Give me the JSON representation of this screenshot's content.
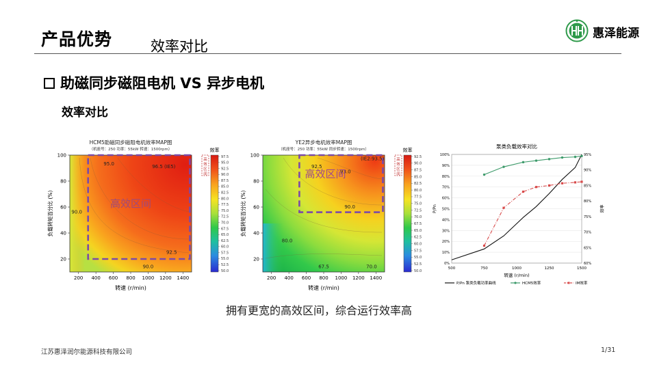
{
  "header": {
    "title": "产品优势",
    "subtitle": "效率对比",
    "brand_name": "惠泽能源",
    "logo_icon": "hz-logo-icon",
    "logo_color": "#2e9a4a"
  },
  "section": {
    "title": "助磁同步磁阻电机 VS 异步电机",
    "sub_heading": "效率对比"
  },
  "caption": "拥有更宽的高效区间，综合运行效率高",
  "footer": {
    "company": "江苏惠泽润尔能源科技有限公司",
    "page": "1/31"
  },
  "chart_data": [
    {
      "type": "heatmap",
      "title": "HCM5助磁同步磁阻电机效率MAP图",
      "subtitle": "（机座号：250  功率：55kW  转速：1500rpm）",
      "xlabel": "转速 (r/min)",
      "ylabel": "负载转矩百分比 (%)",
      "xticks": [
        200,
        400,
        600,
        800,
        1000,
        1200,
        1400
      ],
      "yticks": [
        20,
        40,
        60,
        80,
        100
      ],
      "xlim": [
        100,
        1500
      ],
      "ylim": [
        10,
        100
      ],
      "contour_labels": [
        {
          "text": "95.0",
          "x": 550,
          "y": 92
        },
        {
          "text": "96.5 (IE5)",
          "x": 1180,
          "y": 90
        },
        {
          "text": "90.0",
          "x": 180,
          "y": 55
        },
        {
          "text": "92.5",
          "x": 1270,
          "y": 24
        },
        {
          "text": "90.0",
          "x": 1000,
          "y": 13
        }
      ],
      "zone_label": "高效区间",
      "zone_label_pos": {
        "x": 800,
        "y": 60
      },
      "zone": {
        "x0": 310,
        "x1": 1480,
        "y0": 20,
        "y1": 100
      },
      "colorbar_title": "效率",
      "colorbar_ticks": [
        "97.5",
        "95.0",
        "92.5",
        "90.0",
        "87.5",
        "85.0",
        "82.5",
        "80.0",
        "77.5",
        "75.0",
        "72.5",
        "70.0",
        "67.5",
        "65.0",
        "62.5",
        "60.0",
        "57.5",
        "55.0",
        "52.5",
        "50.0"
      ],
      "colorbar_note": "高效区间"
    },
    {
      "type": "heatmap",
      "title": "YE2异步电机效率MAP图",
      "subtitle": "（机座号：250  功率：55kW  同步转速：1500rpm）",
      "xlabel": "转速 (r/min)",
      "ylabel": "负载转矩百分比 (%)",
      "xticks": [
        200,
        400,
        600,
        800,
        1000,
        1200,
        1400
      ],
      "yticks": [
        20,
        40,
        60,
        80,
        100
      ],
      "xlim": [
        100,
        1500
      ],
      "ylim": [
        10,
        100
      ],
      "contour_labels": [
        {
          "text": "(IE2:93.5)",
          "x": 1360,
          "y": 96
        },
        {
          "text": "93.0",
          "x": 1050,
          "y": 86
        },
        {
          "text": "92.5",
          "x": 720,
          "y": 90
        },
        {
          "text": "90.0",
          "x": 1100,
          "y": 59
        },
        {
          "text": "80.0",
          "x": 380,
          "y": 33
        },
        {
          "text": "67.5",
          "x": 800,
          "y": 13
        },
        {
          "text": "70.0",
          "x": 1350,
          "y": 13
        }
      ],
      "zone_label": "高效区间",
      "zone_label_pos": {
        "x": 820,
        "y": 83
      },
      "zone": {
        "x0": 520,
        "x1": 1480,
        "y0": 56,
        "y1": 100
      },
      "colorbar_title": "效率",
      "colorbar_ticks": [
        "92.5",
        "90.0",
        "87.5",
        "85.0",
        "82.5",
        "80.0",
        "77.5",
        "75.0",
        "72.5",
        "70.0",
        "67.5",
        "65.0",
        "62.5",
        "60.0",
        "57.5",
        "55.0",
        "52.5",
        "50.0"
      ],
      "colorbar_note": "高效区间"
    },
    {
      "type": "line",
      "title": "泵类负载效率对比",
      "xlabel": "转速 (r/min)",
      "ylabel_left": "P/Pn",
      "ylabel_right": "效率",
      "x": [
        500,
        750,
        1000,
        1250,
        1500
      ],
      "xlim": [
        500,
        1500
      ],
      "yticks_left": [
        "0%",
        "10%",
        "20%",
        "30%",
        "40%",
        "50%",
        "60%",
        "70%",
        "80%",
        "90%",
        "100%"
      ],
      "yticks_right": [
        "60%",
        "65%",
        "70%",
        "75%",
        "80%",
        "85%",
        "90%",
        "95%"
      ],
      "legend": {
        "placement": "bottom",
        "entries": [
          "P/Pn 泵类负载功率曲线",
          "HCM5效率",
          "IM效率"
        ]
      },
      "series": [
        {
          "name": "P/Pn 泵类负载功率曲线",
          "axis": "left",
          "color": "#111111",
          "x": [
            500,
            750,
            900,
            1050,
            1150,
            1250,
            1350,
            1450,
            1500
          ],
          "y": [
            0.03,
            0.13,
            0.25,
            0.42,
            0.52,
            0.64,
            0.77,
            0.88,
            1.0
          ]
        },
        {
          "name": "HCM5效率",
          "axis": "right",
          "color": "#3c9a6a",
          "x": [
            750,
            900,
            1050,
            1150,
            1250,
            1350,
            1450,
            1500
          ],
          "y": [
            0.885,
            0.91,
            0.925,
            0.93,
            0.935,
            0.94,
            0.942,
            0.945
          ]
        },
        {
          "name": "IM效率",
          "axis": "right",
          "color": "#d84a4a",
          "x": [
            750,
            900,
            1050,
            1150,
            1250,
            1350,
            1450,
            1500
          ],
          "y": [
            0.656,
            0.778,
            0.83,
            0.845,
            0.85,
            0.857,
            0.86,
            0.862
          ]
        }
      ]
    }
  ]
}
